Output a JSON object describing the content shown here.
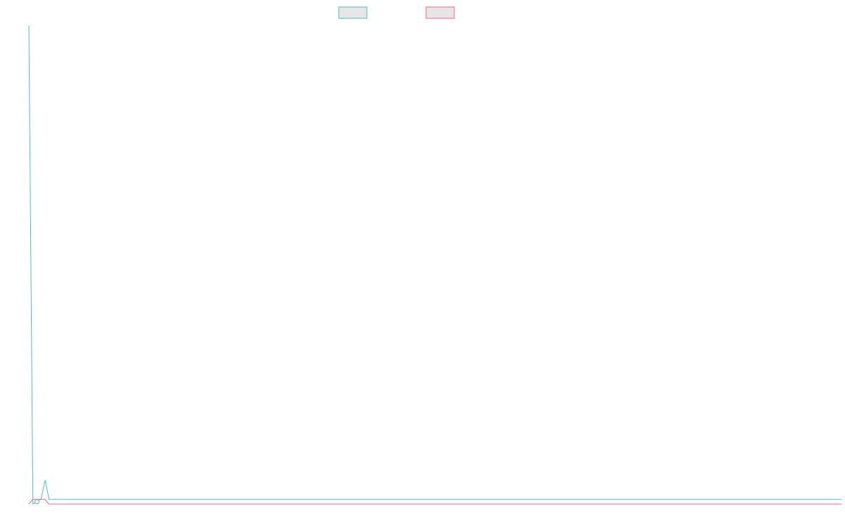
{
  "chart_data": {
    "type": "line",
    "title": "",
    "xlabel": "",
    "ylabel": "",
    "grid": false,
    "legend_position": "top-center",
    "ylim": [
      0,
      100
    ],
    "series": [
      {
        "color": "#4bc0c0",
        "fill": "#e6e6e6",
        "values": [
          100,
          0,
          0.5,
          1,
          5,
          1,
          1,
          1,
          1,
          1,
          1,
          1,
          1,
          1,
          1,
          1,
          1,
          1,
          1,
          1,
          1,
          1,
          1,
          1,
          1,
          1,
          1,
          1,
          1,
          1,
          1,
          1,
          1,
          1,
          1,
          1,
          1,
          1,
          1,
          1,
          1,
          1,
          1,
          1,
          1,
          1,
          1,
          1,
          1,
          1,
          1,
          1,
          1,
          1,
          1,
          1,
          1,
          1,
          1,
          1,
          1,
          1,
          1,
          1,
          1,
          1,
          1,
          1,
          1,
          1,
          1,
          1,
          1,
          1,
          1,
          1,
          1,
          1,
          1,
          1,
          1,
          1,
          1,
          1,
          1,
          1,
          1,
          1,
          1,
          1,
          1,
          1,
          1,
          1,
          1,
          1,
          1,
          1,
          1,
          1,
          1,
          1,
          1,
          1,
          1,
          1,
          1,
          1,
          1,
          1,
          1,
          1,
          1,
          1,
          1,
          1,
          1,
          1,
          1,
          1,
          1,
          1,
          1,
          1,
          1,
          1,
          1,
          1,
          1,
          1,
          1,
          1,
          1,
          1,
          1,
          1,
          1,
          1,
          1,
          1,
          1,
          1,
          1,
          1,
          1,
          1,
          1,
          1,
          1,
          1,
          1,
          1,
          1,
          1,
          1,
          1,
          1,
          1,
          1,
          1,
          1,
          1,
          1,
          1,
          1,
          1,
          1,
          1,
          1,
          1,
          1,
          1,
          1,
          1,
          1,
          1,
          1,
          1,
          1,
          1,
          1,
          1,
          1,
          1,
          1,
          1,
          1,
          1,
          1,
          1,
          1,
          1,
          1,
          1,
          1,
          1,
          1,
          1,
          1,
          1,
          1,
          1
        ]
      },
      {
        "color": "#ff6384",
        "fill": "#e6e6e6",
        "values": [
          0,
          1,
          1,
          1,
          1,
          0,
          0,
          0,
          0,
          0,
          0,
          0,
          0,
          0,
          0,
          0,
          0,
          0,
          0,
          0,
          0,
          0,
          0,
          0,
          0,
          0,
          0,
          0,
          0,
          0,
          0,
          0,
          0,
          0,
          0,
          0,
          0,
          0,
          0,
          0,
          0,
          0,
          0,
          0,
          0,
          0,
          0,
          0,
          0,
          0,
          0,
          0,
          0,
          0,
          0,
          0,
          0,
          0,
          0,
          0,
          0,
          0,
          0,
          0,
          0,
          0,
          0,
          0,
          0,
          0,
          0,
          0,
          0,
          0,
          0,
          0,
          0,
          0,
          0,
          0,
          0,
          0,
          0,
          0,
          0,
          0,
          0,
          0,
          0,
          0,
          0,
          0,
          0,
          0,
          0,
          0,
          0,
          0,
          0,
          0,
          0,
          0,
          0,
          0,
          0,
          0,
          0,
          0,
          0,
          0,
          0,
          0,
          0,
          0,
          0,
          0,
          0,
          0,
          0,
          0,
          0,
          0,
          0,
          0,
          0,
          0,
          0,
          0,
          0,
          0,
          0,
          0,
          0,
          0,
          0,
          0,
          0,
          0,
          0,
          0,
          0,
          0,
          0,
          0,
          0,
          0,
          0,
          0,
          0,
          0,
          0,
          0,
          0,
          0,
          0,
          0,
          0,
          0,
          0,
          0,
          0,
          0,
          0,
          0,
          0,
          0,
          0,
          0,
          0,
          0,
          0,
          0,
          0,
          0,
          0,
          0,
          0,
          0,
          0,
          0,
          0,
          0,
          0,
          0,
          0,
          0,
          0,
          0,
          0,
          0,
          0,
          0,
          0,
          0,
          0,
          0,
          0,
          0,
          0,
          0,
          0,
          0,
          0,
          0
        ]
      }
    ]
  }
}
